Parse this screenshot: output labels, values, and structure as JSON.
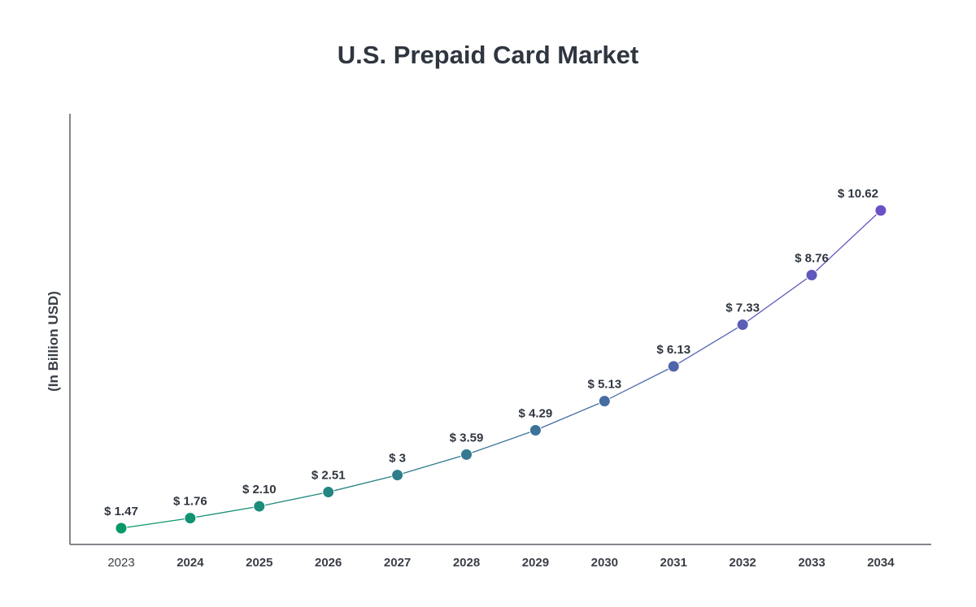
{
  "chart_data": {
    "type": "line",
    "title": "U.S. Prepaid Card Market",
    "ylabel": "(In Billion USD)",
    "xlabel": "",
    "categories": [
      "2023",
      "2024",
      "2025",
      "2026",
      "2027",
      "2028",
      "2029",
      "2030",
      "2031",
      "2032",
      "2033",
      "2034"
    ],
    "values": [
      1.47,
      1.76,
      2.1,
      2.51,
      3,
      3.59,
      4.29,
      5.13,
      6.13,
      7.33,
      8.76,
      10.62
    ],
    "data_labels": [
      "$ 1.47",
      "$ 1.76",
      "$ 2.10",
      "$ 2.51",
      "$ 3",
      "$ 3.59",
      "$ 4.29",
      "$ 5.13",
      "$ 6.13",
      "$ 7.33",
      "$ 8.76",
      "$ 10.62"
    ],
    "grid": false,
    "legend": "none",
    "colors": {
      "start": "#089968",
      "end": "#6a52c6",
      "axis": "#5a5f66",
      "first_tick": "#7d8188"
    }
  }
}
